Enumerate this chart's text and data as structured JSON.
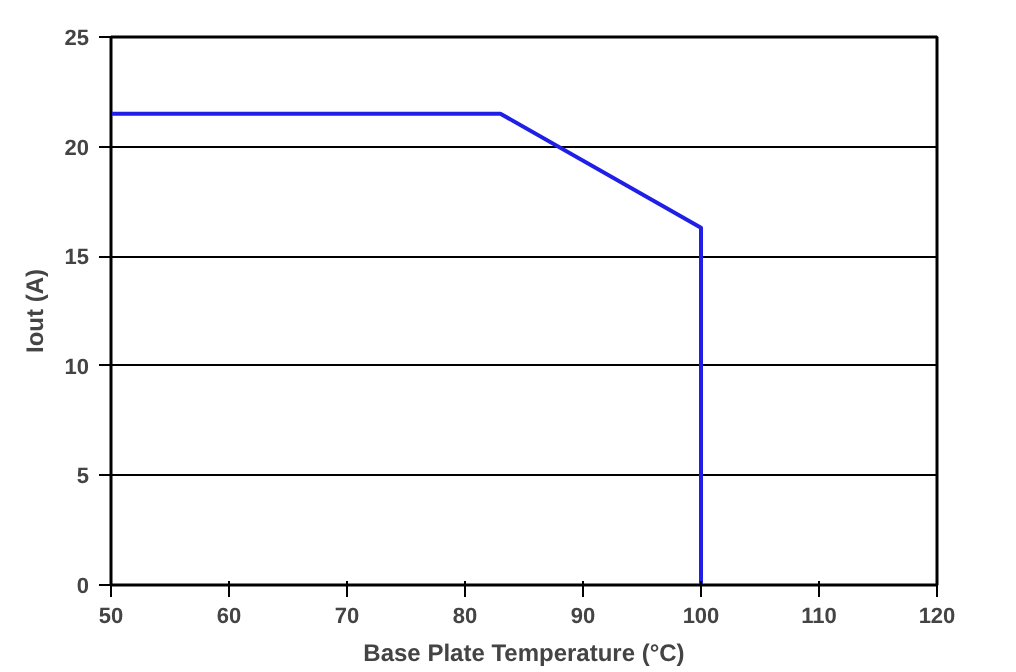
{
  "chart_data": {
    "type": "line",
    "xlabel": "Base Plate Temperature (°C)",
    "ylabel": "Iout (A)",
    "x": [
      50,
      83,
      100,
      100
    ],
    "series": [
      {
        "color": "#1f1fe6",
        "values": [
          21.5,
          21.5,
          16.3,
          0
        ]
      }
    ],
    "xlim": [
      50,
      120
    ],
    "ylim": [
      0,
      25
    ],
    "xticks": [
      50,
      60,
      70,
      80,
      90,
      100,
      110,
      120
    ],
    "yticks": [
      0,
      5,
      10,
      15,
      20,
      25
    ],
    "grid": "y",
    "marker": "none",
    "line_style": "solid"
  }
}
